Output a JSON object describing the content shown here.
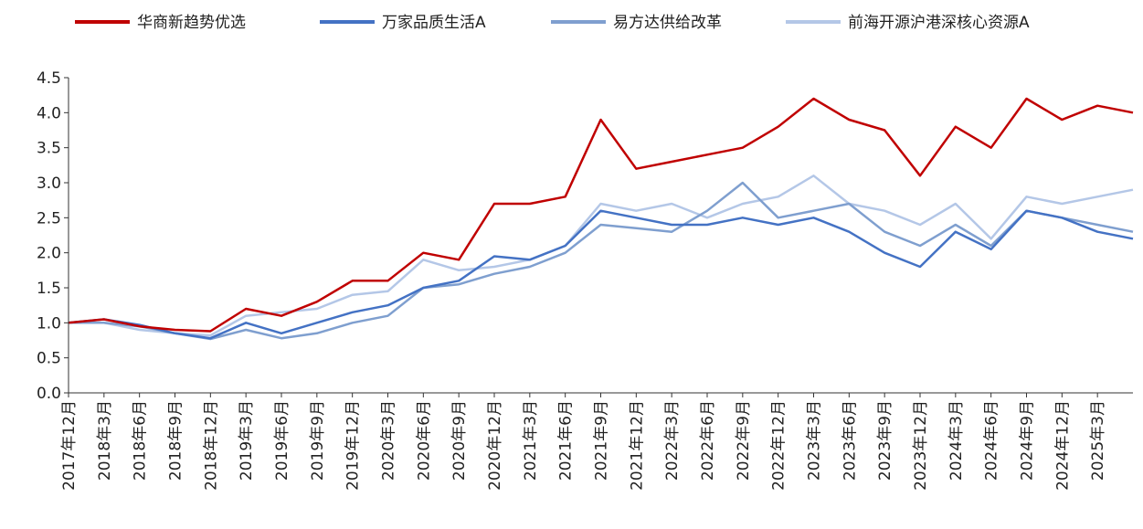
{
  "chart_data": {
    "type": "line",
    "title": "",
    "xlabel": "",
    "ylabel": "",
    "ylim": [
      0,
      4.5
    ],
    "yticks": [
      "0.0",
      "0.5",
      "1.0",
      "1.5",
      "2.0",
      "2.5",
      "3.0",
      "3.5",
      "4.0",
      "4.5"
    ],
    "xticks": [
      "2017年12月",
      "2018年3月",
      "2018年6月",
      "2018年9月",
      "2018年12月",
      "2019年3月",
      "2019年6月",
      "2019年9月",
      "2019年12月",
      "2020年3月",
      "2020年6月",
      "2020年9月",
      "2020年12月",
      "2021年3月",
      "2021年6月",
      "2021年9月",
      "2021年12月",
      "2022年3月",
      "2022年6月",
      "2022年9月",
      "2022年12月",
      "2023年3月",
      "2023年6月",
      "2023年9月",
      "2023年12月",
      "2024年3月",
      "2024年6月",
      "2024年9月",
      "2024年12月",
      "2025年3月"
    ],
    "legend_position": "top",
    "series": [
      {
        "name": "华商新趋势优选",
        "color": "#c00000",
        "values": [
          1.0,
          1.05,
          0.95,
          0.9,
          0.88,
          1.2,
          1.1,
          1.3,
          1.6,
          1.6,
          2.0,
          1.9,
          2.7,
          2.7,
          2.8,
          3.9,
          3.2,
          3.3,
          3.4,
          3.5,
          3.8,
          4.2,
          3.9,
          3.75,
          3.1,
          3.8,
          3.5,
          4.2,
          3.9,
          4.1,
          4.0
        ]
      },
      {
        "name": "万家品质生活A",
        "color": "#4472c4",
        "values": [
          1.0,
          1.05,
          0.97,
          0.85,
          0.78,
          1.0,
          0.85,
          1.0,
          1.15,
          1.25,
          1.5,
          1.6,
          1.95,
          1.9,
          2.1,
          2.6,
          2.5,
          2.4,
          2.4,
          2.5,
          2.4,
          2.5,
          2.3,
          2.0,
          1.8,
          2.3,
          2.05,
          2.6,
          2.5,
          2.3,
          2.2
        ]
      },
      {
        "name": "易方达供给改革",
        "color": "#7f9fcf",
        "values": [
          1.0,
          1.0,
          0.95,
          0.85,
          0.77,
          0.9,
          0.78,
          0.85,
          1.0,
          1.1,
          1.5,
          1.55,
          1.7,
          1.8,
          2.0,
          2.4,
          2.35,
          2.3,
          2.6,
          3.0,
          2.5,
          2.6,
          2.7,
          2.3,
          2.1,
          2.4,
          2.1,
          2.6,
          2.5,
          2.4,
          2.3
        ]
      },
      {
        "name": "前海开源沪港深核心资源A",
        "color": "#b4c7e7",
        "values": [
          1.0,
          1.0,
          0.9,
          0.85,
          0.82,
          1.1,
          1.15,
          1.2,
          1.4,
          1.45,
          1.9,
          1.75,
          1.8,
          1.9,
          2.1,
          2.7,
          2.6,
          2.7,
          2.5,
          2.7,
          2.8,
          3.1,
          2.7,
          2.6,
          2.4,
          2.7,
          2.2,
          2.8,
          2.7,
          2.8,
          2.9
        ]
      }
    ]
  }
}
